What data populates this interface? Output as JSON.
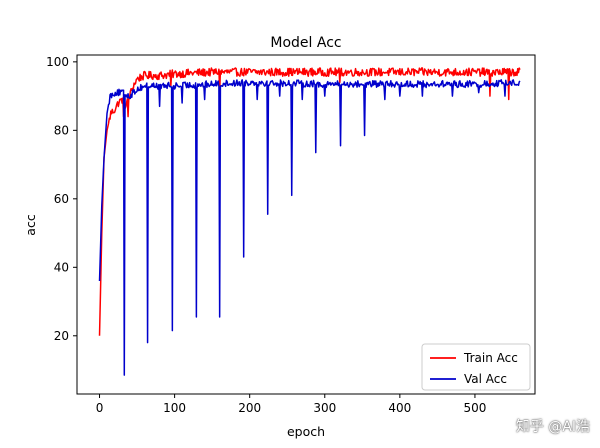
{
  "chart_data": {
    "type": "line",
    "title": "Model Acc",
    "xlabel": "epoch",
    "ylabel": "acc",
    "xlim": [
      -30,
      580
    ],
    "ylim": [
      3,
      102
    ],
    "xticks": [
      0,
      100,
      200,
      300,
      400,
      500
    ],
    "yticks": [
      20,
      40,
      60,
      80,
      100
    ],
    "grid": false,
    "legend_position": "lower-right",
    "series": [
      {
        "name": "Train Acc",
        "color": "#ff0000",
        "x_start": 0,
        "x_end": 560,
        "keyframes": [
          [
            0,
            20
          ],
          [
            3,
            50
          ],
          [
            6,
            72
          ],
          [
            10,
            80
          ],
          [
            15,
            85
          ],
          [
            20,
            86
          ],
          [
            25,
            88
          ],
          [
            30,
            89
          ],
          [
            35,
            87
          ],
          [
            40,
            90
          ],
          [
            45,
            93
          ],
          [
            50,
            95
          ],
          [
            60,
            96
          ],
          [
            80,
            96
          ],
          [
            100,
            96.5
          ],
          [
            150,
            97
          ],
          [
            200,
            97
          ],
          [
            300,
            97
          ],
          [
            400,
            97
          ],
          [
            500,
            97
          ],
          [
            560,
            97
          ]
        ],
        "noise": 1.2,
        "spikes": [
          [
            32,
            84
          ],
          [
            38,
            84
          ],
          [
            95,
            93
          ],
          [
            160,
            91
          ],
          [
            320,
            94
          ],
          [
            520,
            90
          ],
          [
            545,
            89
          ]
        ]
      },
      {
        "name": "Val Acc",
        "color": "#0000cc",
        "x_start": 0,
        "x_end": 560,
        "keyframes": [
          [
            0,
            36
          ],
          [
            3,
            58
          ],
          [
            6,
            72
          ],
          [
            10,
            85
          ],
          [
            14,
            90
          ],
          [
            20,
            91
          ],
          [
            30,
            91
          ],
          [
            40,
            90
          ],
          [
            50,
            92
          ],
          [
            60,
            93
          ],
          [
            80,
            93
          ],
          [
            100,
            93
          ],
          [
            150,
            93.5
          ],
          [
            200,
            94
          ],
          [
            300,
            93.5
          ],
          [
            400,
            93.5
          ],
          [
            500,
            93.5
          ],
          [
            560,
            94
          ]
        ],
        "noise": 1.0,
        "spikes": [
          [
            33,
            8.5
          ],
          [
            64,
            18
          ],
          [
            97,
            21.5
          ],
          [
            129,
            25.5
          ],
          [
            160,
            25.5
          ],
          [
            192,
            43
          ],
          [
            224,
            55.5
          ],
          [
            256,
            61
          ],
          [
            288,
            73.5
          ],
          [
            321,
            75.5
          ],
          [
            353,
            78.5
          ],
          [
            80,
            87
          ],
          [
            110,
            88
          ],
          [
            140,
            89
          ],
          [
            210,
            89
          ],
          [
            240,
            90
          ],
          [
            270,
            89
          ],
          [
            300,
            90
          ],
          [
            380,
            89
          ],
          [
            400,
            90
          ],
          [
            430,
            90
          ],
          [
            470,
            90
          ],
          [
            505,
            91
          ],
          [
            540,
            90
          ]
        ]
      }
    ]
  },
  "watermark": "知乎 @AI浩"
}
